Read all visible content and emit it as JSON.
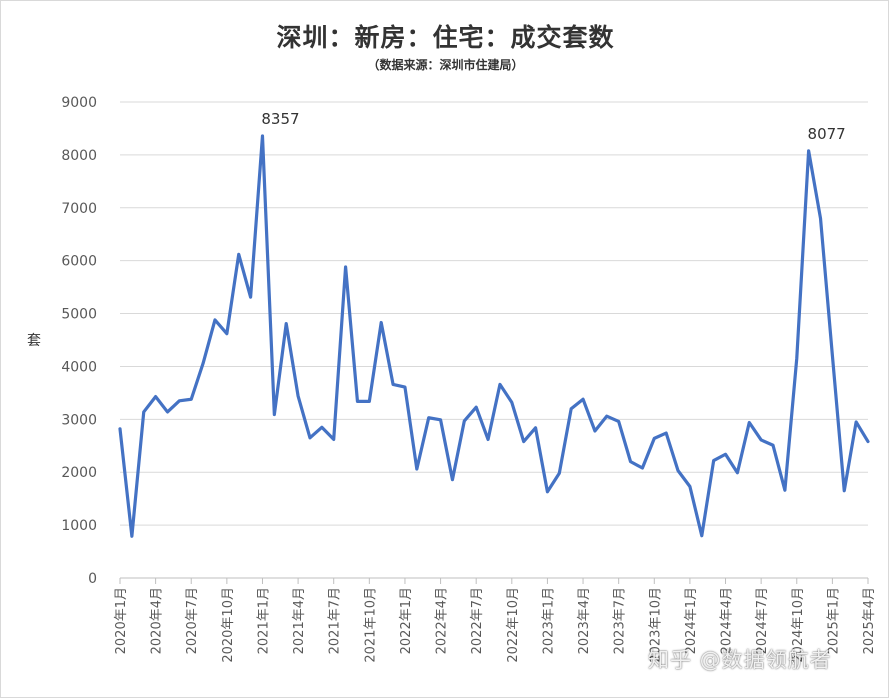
{
  "chart_data": {
    "type": "line",
    "title": "深圳：新房：住宅：成交套数",
    "subtitle": "（数据来源：深圳市住建局）",
    "ylabel": "套",
    "ylim": [
      0,
      9000
    ],
    "yticks": [
      0,
      1000,
      2000,
      3000,
      4000,
      5000,
      6000,
      7000,
      8000,
      9000
    ],
    "grid": true,
    "legend": "none",
    "x_tick_labels": [
      "2020年1月",
      "2020年4月",
      "2020年7月",
      "2020年10月",
      "2021年1月",
      "2021年4月",
      "2021年7月",
      "2021年10月",
      "2022年1月",
      "2022年4月",
      "2022年7月",
      "2022年10月",
      "2023年1月",
      "2023年4月",
      "2023年7月",
      "2023年10月",
      "2024年1月",
      "2024年4月",
      "2024年7月",
      "2024年10月",
      "2025年1月",
      "2025年4月"
    ],
    "x": [
      "2020-01",
      "2020-02",
      "2020-03",
      "2020-04",
      "2020-05",
      "2020-06",
      "2020-07",
      "2020-08",
      "2020-09",
      "2020-10",
      "2020-11",
      "2020-12",
      "2021-01",
      "2021-02",
      "2021-03",
      "2021-04",
      "2021-05",
      "2021-06",
      "2021-07",
      "2021-08",
      "2021-09",
      "2021-10",
      "2021-11",
      "2021-12",
      "2022-01",
      "2022-02",
      "2022-03",
      "2022-04",
      "2022-05",
      "2022-06",
      "2022-07",
      "2022-08",
      "2022-09",
      "2022-10",
      "2022-11",
      "2022-12",
      "2023-01",
      "2023-02",
      "2023-03",
      "2023-04",
      "2023-05",
      "2023-06",
      "2023-07",
      "2023-08",
      "2023-09",
      "2023-10",
      "2023-11",
      "2023-12",
      "2024-01",
      "2024-02",
      "2024-03",
      "2024-04",
      "2024-05",
      "2024-06",
      "2024-07",
      "2024-08",
      "2024-09",
      "2024-10",
      "2024-11",
      "2024-12",
      "2025-01",
      "2025-02",
      "2025-03",
      "2025-04"
    ],
    "series": [
      {
        "values": [
          2820,
          790,
          3140,
          3430,
          3140,
          3350,
          3380,
          4060,
          4880,
          4620,
          6120,
          5310,
          8357,
          3090,
          4810,
          3440,
          2650,
          2850,
          2620,
          5880,
          3340,
          3340,
          4830,
          3660,
          3610,
          2060,
          3030,
          2990,
          1860,
          2970,
          3230,
          2620,
          3660,
          3320,
          2580,
          2840,
          1630,
          1980,
          3200,
          3380,
          2780,
          3060,
          2960,
          2200,
          2080,
          2640,
          2740,
          2030,
          1730,
          800,
          2220,
          2340,
          1990,
          2940,
          2610,
          2510,
          1660,
          4150,
          8077,
          6800,
          4210,
          1650,
          2950,
          2580
        ],
        "color": "#4472c4"
      }
    ],
    "annotations": [
      {
        "x": "2021-01",
        "y": 8357,
        "text": "8357"
      },
      {
        "x": "2024-11",
        "y": 8077,
        "text": "8077"
      }
    ]
  },
  "watermark": "知乎 @数据领航者"
}
